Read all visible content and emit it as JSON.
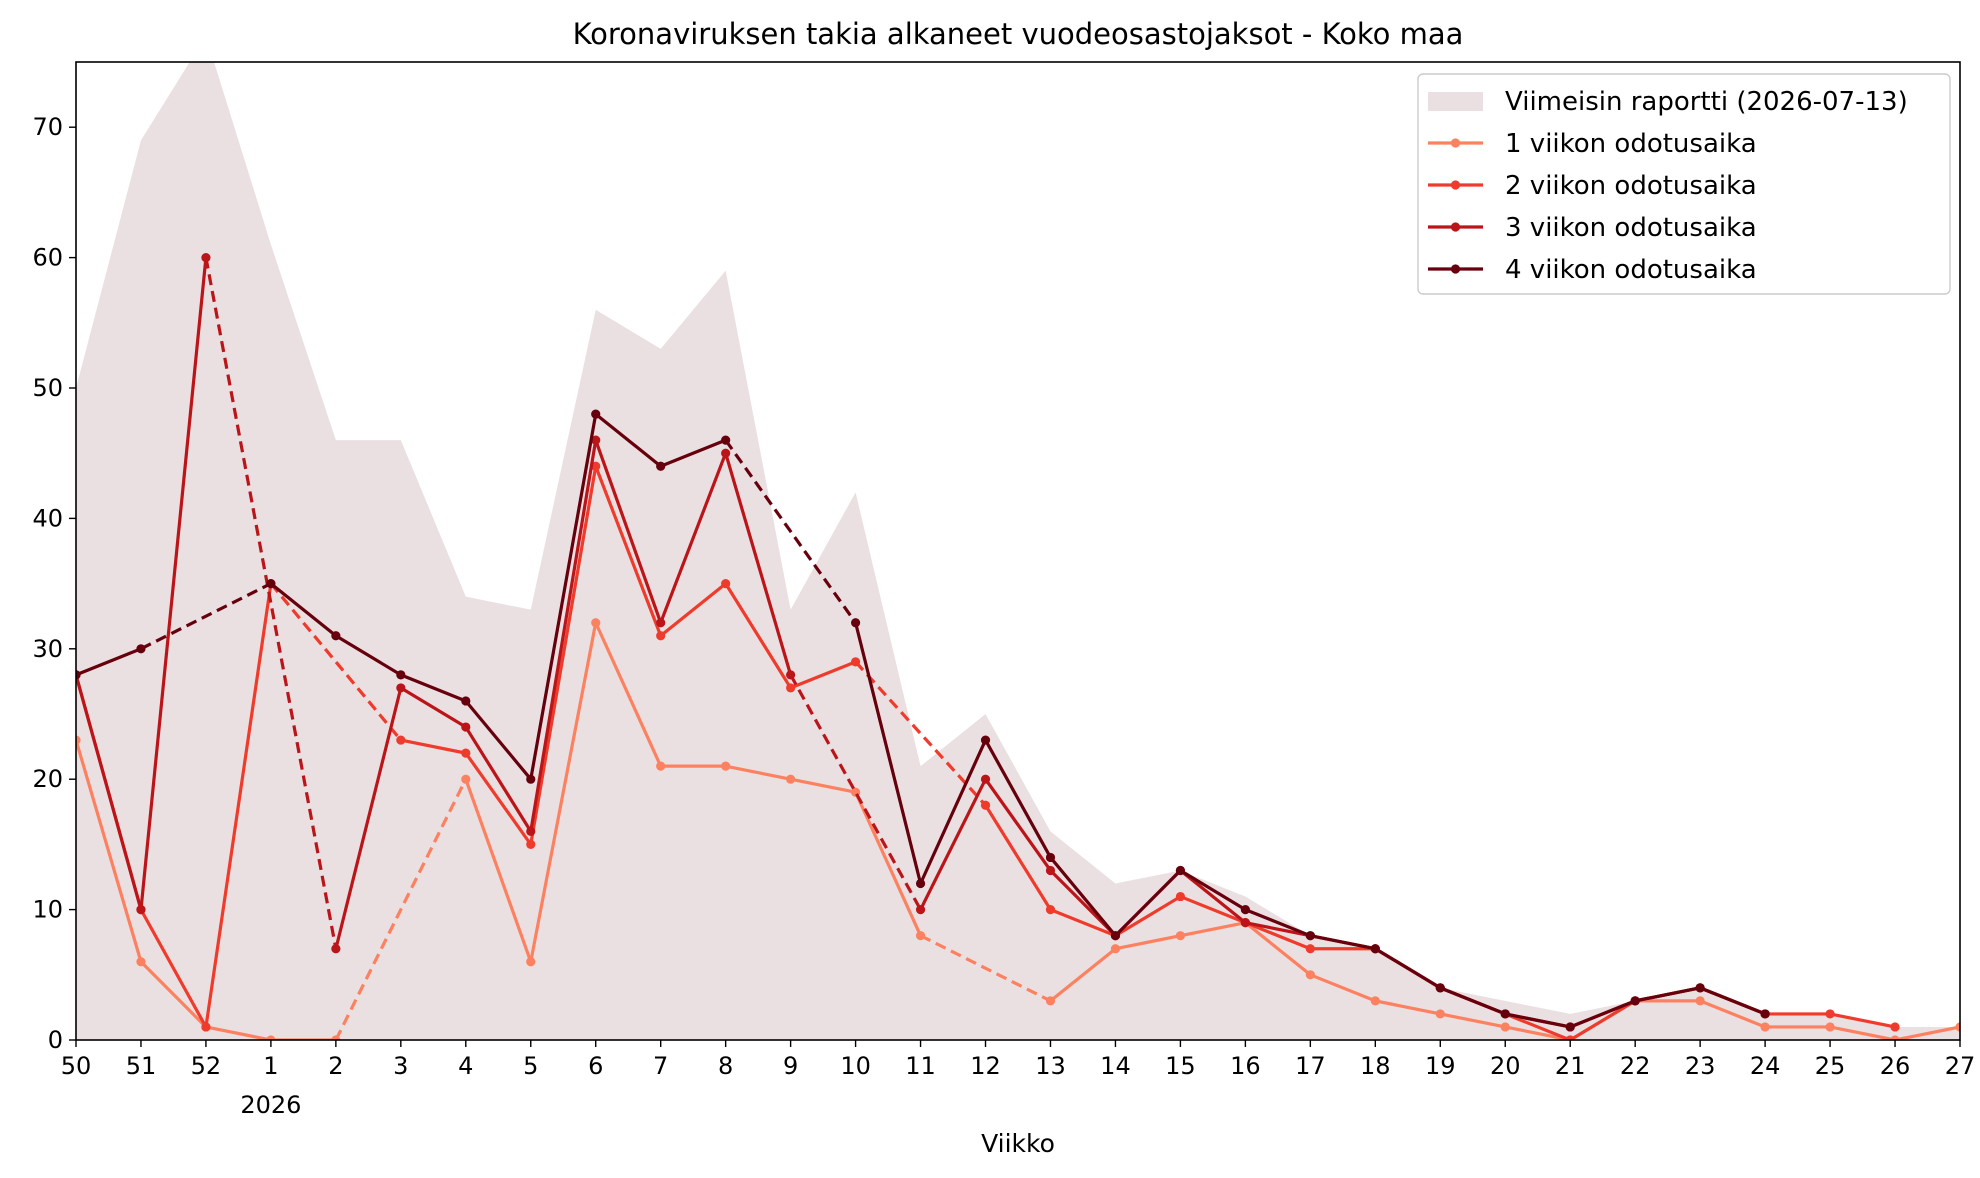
{
  "chart_data": {
    "type": "line",
    "title": "Koronaviruksen takia alkaneet vuodeosastojaksot - Koko maa",
    "xlabel": "Viikko",
    "ylabel": "",
    "year_label": "2026",
    "year_label_under": "1",
    "categories": [
      "50",
      "51",
      "52",
      "1",
      "2",
      "3",
      "4",
      "5",
      "6",
      "7",
      "8",
      "9",
      "10",
      "11",
      "12",
      "13",
      "14",
      "15",
      "16",
      "17",
      "18",
      "19",
      "20",
      "21",
      "22",
      "23",
      "24",
      "25",
      "26",
      "27"
    ],
    "ylim": [
      0,
      75
    ],
    "yticks": [
      0,
      10,
      20,
      30,
      40,
      50,
      60,
      70
    ],
    "legend_position": "top-right",
    "grid": false,
    "area": {
      "name": "Viimeisin raportti (2026-07-13)",
      "color": "#ebe0e1",
      "values": [
        50,
        69,
        77,
        61,
        46,
        46,
        34,
        33,
        56,
        53,
        59,
        33,
        42,
        21,
        25,
        16,
        12,
        13,
        11,
        8,
        7,
        4,
        3,
        2,
        3,
        4,
        2,
        2,
        1,
        1
      ]
    },
    "series": [
      {
        "name": "1 viikon odotusaika",
        "color": "#fc8161",
        "values": [
          23,
          6,
          1,
          0,
          0,
          null,
          20,
          6,
          32,
          21,
          21,
          20,
          19,
          8,
          null,
          3,
          7,
          8,
          9,
          5,
          3,
          2,
          1,
          0,
          3,
          3,
          1,
          1,
          0,
          1
        ]
      },
      {
        "name": "2 viikon odotusaika",
        "color": "#ef3b2c",
        "values": [
          28,
          10,
          1,
          35,
          null,
          23,
          22,
          15,
          44,
          31,
          35,
          27,
          29,
          null,
          18,
          10,
          8,
          11,
          9,
          7,
          7,
          4,
          2,
          0,
          3,
          4,
          2,
          2,
          1,
          null
        ]
      },
      {
        "name": "3 viikon odotusaika",
        "color": "#bb151a",
        "values": [
          28,
          10,
          60,
          null,
          7,
          27,
          24,
          16,
          46,
          32,
          45,
          28,
          null,
          10,
          20,
          13,
          8,
          13,
          9,
          8,
          7,
          4,
          2,
          1,
          3,
          4,
          2,
          null,
          null,
          null
        ]
      },
      {
        "name": "4 viikon odotusaika",
        "color": "#67000d",
        "values": [
          28,
          30,
          null,
          35,
          31,
          28,
          26,
          20,
          48,
          44,
          46,
          null,
          32,
          12,
          23,
          14,
          8,
          13,
          10,
          8,
          7,
          4,
          2,
          1,
          3,
          4,
          2,
          null,
          null,
          null
        ]
      }
    ]
  }
}
